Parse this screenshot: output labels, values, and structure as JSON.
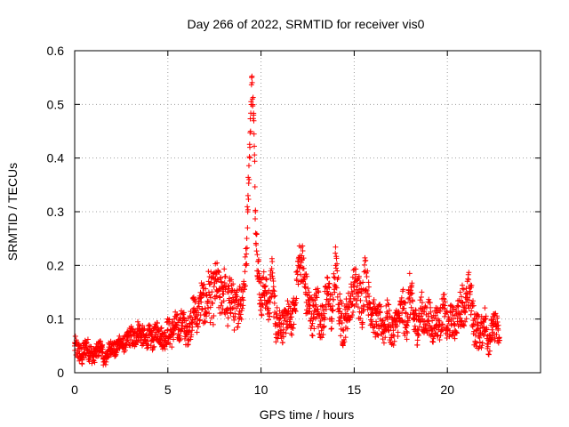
{
  "chart_data": {
    "type": "scatter",
    "title": "Day 266 of 2022, SRMTID for receiver vis0",
    "xlabel": "GPS time / hours",
    "ylabel": "SRMTID / TECUs",
    "xlim": [
      0,
      25
    ],
    "ylim": [
      0,
      0.6
    ],
    "xticks": [
      0,
      5,
      10,
      15,
      20
    ],
    "yticks": [
      0,
      0.1,
      0.2,
      0.3,
      0.4,
      0.5,
      0.6
    ],
    "xtick_labels": [
      "0",
      "5",
      "10",
      "15",
      "20"
    ],
    "ytick_labels": [
      "0",
      "0.1",
      "0.2",
      "0.3",
      "0.4",
      "0.5",
      "0.6"
    ],
    "grid": true,
    "marker": "+",
    "series": [
      {
        "name": "vis0",
        "color": "#ff0000",
        "x": [
          0.0,
          0.2,
          0.4,
          0.6,
          0.8,
          1.0,
          1.2,
          1.4,
          1.6,
          1.8,
          2.0,
          2.2,
          2.4,
          2.6,
          2.8,
          3.0,
          3.2,
          3.4,
          3.6,
          3.8,
          4.0,
          4.2,
          4.4,
          4.6,
          4.8,
          5.0,
          5.2,
          5.4,
          5.6,
          5.8,
          6.0,
          6.2,
          6.4,
          6.6,
          6.8,
          7.0,
          7.2,
          7.4,
          7.6,
          7.8,
          8.0,
          8.2,
          8.4,
          8.6,
          8.8,
          9.0,
          9.2,
          9.3,
          9.4,
          9.5,
          9.6,
          9.7,
          9.8,
          9.9,
          10.0,
          10.2,
          10.4,
          10.6,
          10.8,
          11.0,
          11.2,
          11.4,
          11.6,
          11.8,
          12.0,
          12.2,
          12.4,
          12.6,
          12.8,
          13.0,
          13.2,
          13.4,
          13.6,
          13.8,
          14.0,
          14.2,
          14.4,
          14.6,
          14.8,
          15.0,
          15.2,
          15.4,
          15.6,
          15.8,
          16.0,
          16.2,
          16.4,
          16.6,
          16.8,
          17.0,
          17.2,
          17.4,
          17.6,
          17.8,
          18.0,
          18.2,
          18.4,
          18.6,
          18.8,
          19.0,
          19.2,
          19.4,
          19.6,
          19.8,
          20.0,
          20.2,
          20.4,
          20.6,
          20.8,
          21.0,
          21.2,
          21.4,
          21.6,
          21.8,
          22.0,
          22.2,
          22.4,
          22.6,
          22.8
        ],
        "y": [
          0.05,
          0.04,
          0.03,
          0.05,
          0.04,
          0.03,
          0.04,
          0.05,
          0.02,
          0.04,
          0.05,
          0.04,
          0.06,
          0.05,
          0.06,
          0.07,
          0.06,
          0.08,
          0.07,
          0.06,
          0.07,
          0.06,
          0.08,
          0.07,
          0.06,
          0.08,
          0.07,
          0.09,
          0.08,
          0.1,
          0.07,
          0.09,
          0.12,
          0.1,
          0.14,
          0.12,
          0.15,
          0.13,
          0.17,
          0.14,
          0.16,
          0.12,
          0.15,
          0.11,
          0.13,
          0.14,
          0.2,
          0.33,
          0.42,
          0.55,
          0.48,
          0.3,
          0.22,
          0.17,
          0.14,
          0.16,
          0.12,
          0.18,
          0.09,
          0.1,
          0.08,
          0.11,
          0.09,
          0.12,
          0.2,
          0.21,
          0.15,
          0.12,
          0.1,
          0.14,
          0.09,
          0.11,
          0.16,
          0.1,
          0.2,
          0.12,
          0.08,
          0.11,
          0.13,
          0.16,
          0.15,
          0.12,
          0.19,
          0.13,
          0.11,
          0.09,
          0.1,
          0.08,
          0.11,
          0.07,
          0.09,
          0.1,
          0.12,
          0.09,
          0.15,
          0.1,
          0.08,
          0.12,
          0.09,
          0.11,
          0.08,
          0.1,
          0.09,
          0.12,
          0.08,
          0.1,
          0.09,
          0.11,
          0.13,
          0.12,
          0.16,
          0.09,
          0.08,
          0.07,
          0.1,
          0.06,
          0.08,
          0.09,
          0.06
        ],
        "y_spread": [
          0.04,
          0.04,
          0.04,
          0.04,
          0.04,
          0.03,
          0.03,
          0.03,
          0.03,
          0.03,
          0.03,
          0.03,
          0.03,
          0.03,
          0.03,
          0.04,
          0.04,
          0.04,
          0.04,
          0.04,
          0.04,
          0.04,
          0.04,
          0.04,
          0.04,
          0.05,
          0.05,
          0.05,
          0.05,
          0.05,
          0.05,
          0.06,
          0.06,
          0.06,
          0.07,
          0.08,
          0.1,
          0.1,
          0.09,
          0.08,
          0.09,
          0.09,
          0.08,
          0.08,
          0.08,
          0.08,
          0.08,
          0.06,
          0.06,
          0.03,
          0.05,
          0.08,
          0.08,
          0.08,
          0.08,
          0.07,
          0.07,
          0.08,
          0.07,
          0.06,
          0.06,
          0.06,
          0.06,
          0.06,
          0.08,
          0.08,
          0.09,
          0.08,
          0.07,
          0.08,
          0.07,
          0.08,
          0.08,
          0.07,
          0.08,
          0.08,
          0.07,
          0.07,
          0.07,
          0.08,
          0.09,
          0.1,
          0.08,
          0.07,
          0.07,
          0.06,
          0.06,
          0.06,
          0.06,
          0.06,
          0.06,
          0.06,
          0.08,
          0.07,
          0.09,
          0.08,
          0.06,
          0.07,
          0.07,
          0.07,
          0.06,
          0.06,
          0.06,
          0.07,
          0.06,
          0.06,
          0.06,
          0.06,
          0.08,
          0.08,
          0.08,
          0.08,
          0.07,
          0.06,
          0.06,
          0.06,
          0.05,
          0.06,
          0.05
        ]
      }
    ]
  }
}
